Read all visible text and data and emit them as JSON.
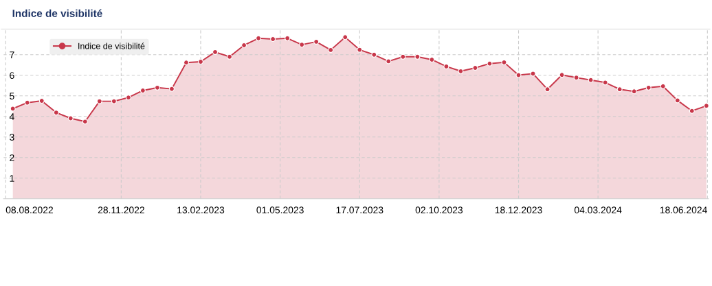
{
  "chart_data": {
    "type": "area",
    "title": "Indice de visibilité",
    "x": [
      "2022-08-15",
      "2022-08-29",
      "2022-09-12",
      "2022-09-26",
      "2022-10-10",
      "2022-10-24",
      "2022-11-07",
      "2022-11-21",
      "2022-12-05",
      "2022-12-19",
      "2023-01-02",
      "2023-01-16",
      "2023-01-30",
      "2023-02-13",
      "2023-02-27",
      "2023-03-13",
      "2023-03-27",
      "2023-04-10",
      "2023-04-24",
      "2023-05-08",
      "2023-05-22",
      "2023-06-05",
      "2023-06-19",
      "2023-07-03",
      "2023-07-17",
      "2023-07-31",
      "2023-08-14",
      "2023-08-28",
      "2023-09-11",
      "2023-09-25",
      "2023-10-09",
      "2023-10-23",
      "2023-11-06",
      "2023-11-20",
      "2023-12-04",
      "2023-12-18",
      "2024-01-01",
      "2024-01-15",
      "2024-01-29",
      "2024-02-12",
      "2024-02-26",
      "2024-03-11",
      "2024-03-25",
      "2024-04-08",
      "2024-04-22",
      "2024-05-06",
      "2024-05-20",
      "2024-06-03",
      "2024-06-17"
    ],
    "series": [
      {
        "name": "Indice de visibilité",
        "color": "#c8374a",
        "values": [
          4.38,
          4.67,
          4.76,
          4.19,
          3.91,
          3.75,
          4.74,
          4.74,
          4.92,
          5.26,
          5.4,
          5.34,
          6.62,
          6.66,
          7.13,
          6.9,
          7.46,
          7.8,
          7.76,
          7.8,
          7.49,
          7.63,
          7.23,
          7.85,
          7.24,
          7.0,
          6.68,
          6.9,
          6.9,
          6.76,
          6.43,
          6.2,
          6.36,
          6.57,
          6.63,
          6.01,
          6.08,
          5.32,
          6.02,
          5.89,
          5.77,
          5.65,
          5.32,
          5.22,
          5.4,
          5.47,
          4.78,
          4.27,
          4.52
        ]
      }
    ],
    "xlim": [
      "2022-08-06",
      "2024-06-19"
    ],
    "xticks": [
      {
        "value": "2022-08-08",
        "label": "08.08.2022"
      },
      {
        "value": "2022-11-28",
        "label": "28.11.2022"
      },
      {
        "value": "2023-02-13",
        "label": "13.02.2023"
      },
      {
        "value": "2023-05-01",
        "label": "01.05.2023"
      },
      {
        "value": "2023-07-17",
        "label": "17.07.2023"
      },
      {
        "value": "2023-10-02",
        "label": "02.10.2023"
      },
      {
        "value": "2023-12-18",
        "label": "18.12.2023"
      },
      {
        "value": "2024-03-04",
        "label": "04.03.2024"
      },
      {
        "value": "2024-06-18",
        "label": "18.06.2024"
      }
    ],
    "ylim": [
      0,
      8.2
    ],
    "yticks": [
      1,
      2,
      3,
      4,
      5,
      6,
      7
    ],
    "grid": true,
    "legend": "top left",
    "marker": "circle",
    "line_style": "solid"
  }
}
